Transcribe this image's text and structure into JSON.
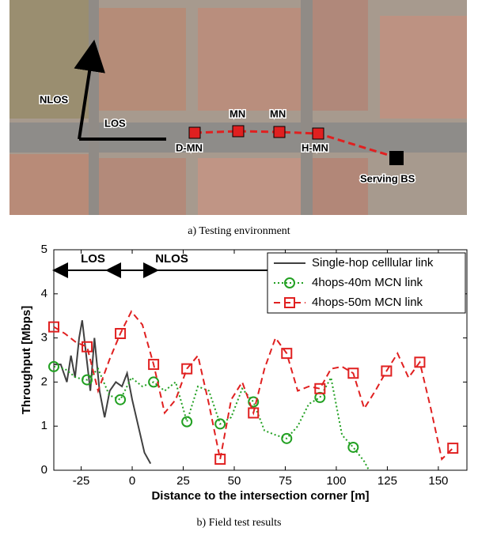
{
  "environment": {
    "labels": {
      "nlos": "NLOS",
      "los": "LOS",
      "mn1": "MN",
      "mn2": "MN",
      "dmn": "D-MN",
      "hmn": "H-MN",
      "bs": "Serving BS"
    },
    "caption": "a) Testing environment"
  },
  "caption": "b) Field test results",
  "chart_data": {
    "type": "line",
    "xlabel": "Distance to the intersection corner [m]",
    "ylabel": "Throughput [Mbps]",
    "xlim": [
      -38.4,
      164
    ],
    "ylim": [
      0,
      5
    ],
    "xticks": [
      -25,
      0,
      25,
      50,
      75,
      100,
      125,
      150
    ],
    "yticks": [
      0,
      1,
      2,
      3,
      4,
      5
    ],
    "legend": "upper right",
    "annotations": [
      "LOS",
      "NLOS"
    ],
    "series": [
      {
        "name": "Single-hop celllular link",
        "color": "#404040",
        "style": "solid",
        "marker": "none",
        "x": [
          -38.4,
          -35,
          -32,
          -30,
          -28,
          -26,
          -24.5,
          -22.5,
          -20.5,
          -18.5,
          -16,
          -13.5,
          -11,
          -8,
          -5,
          -2.5,
          0,
          3,
          6,
          9
        ],
        "values": [
          2.4,
          2.4,
          2.0,
          2.6,
          2.1,
          3.0,
          3.4,
          2.6,
          1.8,
          3.0,
          1.8,
          1.2,
          1.8,
          2.0,
          1.9,
          2.2,
          1.6,
          1.0,
          0.4,
          0.15
        ]
      },
      {
        "name": "4hops-40m MCN link",
        "color": "#22a022",
        "style": "dotted",
        "marker": "circle",
        "x": [
          -38.4,
          -33,
          -27.5,
          -22.1,
          -16.7,
          -11.2,
          -5.8,
          -0.4,
          5,
          10.5,
          15.9,
          21.3,
          26.8,
          32.2,
          37.6,
          43.1,
          48.5,
          53.9,
          59.4,
          64.8,
          70.2,
          75.7,
          81.1,
          86.5,
          92,
          97.4,
          102.8,
          108.3,
          113.7,
          116
        ],
        "values": [
          2.35,
          2.3,
          2.1,
          2.05,
          2.3,
          1.7,
          1.6,
          2.1,
          1.9,
          2.0,
          1.8,
          2.0,
          1.1,
          1.9,
          1.8,
          1.05,
          1.2,
          1.85,
          1.55,
          0.9,
          0.8,
          0.72,
          1.0,
          1.5,
          1.65,
          2.1,
          0.8,
          0.52,
          0.2,
          0
        ]
      },
      {
        "name": "4hops-50m MCN link",
        "color": "#e02020",
        "style": "dashed",
        "marker": "square",
        "x": [
          -38.4,
          -33,
          -27.5,
          -22.1,
          -16.7,
          -11.2,
          -5.8,
          -0.4,
          5,
          10.5,
          15.9,
          21.3,
          26.8,
          32.2,
          37.6,
          43.1,
          48.5,
          53.9,
          59.4,
          64.8,
          70.2,
          75.7,
          81.1,
          86.5,
          92,
          97.4,
          102.8,
          108.3,
          113.7,
          119.1,
          124.6,
          130,
          135.4,
          140.9,
          146.3,
          151.7,
          157.1
        ],
        "values": [
          3.25,
          3.1,
          2.9,
          2.8,
          1.8,
          2.5,
          3.1,
          3.6,
          3.3,
          2.4,
          1.3,
          1.6,
          2.3,
          2.6,
          1.5,
          0.25,
          1.6,
          2.0,
          1.3,
          2.3,
          3.0,
          2.65,
          1.8,
          1.9,
          1.85,
          2.3,
          2.35,
          2.2,
          1.4,
          1.8,
          2.25,
          2.65,
          2.1,
          2.45,
          1.4,
          0.25,
          0.5
        ]
      }
    ]
  }
}
